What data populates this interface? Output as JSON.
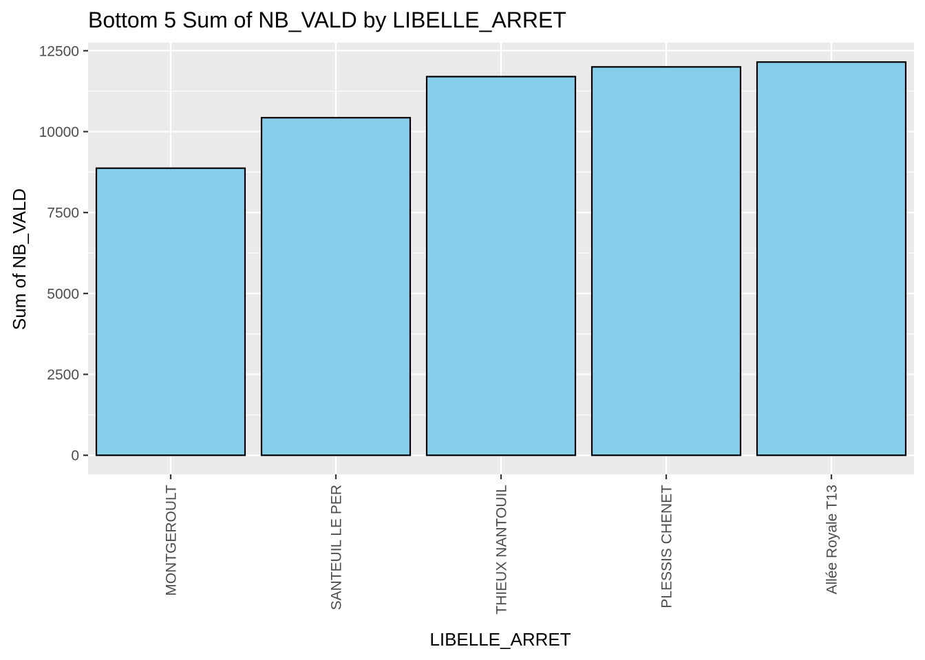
{
  "chart_data": {
    "type": "bar",
    "title": "Bottom 5 Sum of NB_VALD by LIBELLE_ARRET",
    "xlabel": "LIBELLE_ARRET",
    "ylabel": "Sum of NB_VALD",
    "categories": [
      "MONTGEROULT",
      "SANTEUIL LE PER",
      "THIEUX NANTOUIL",
      "PLESSIS CHENET",
      "Allée Royale T13"
    ],
    "values": [
      8870,
      10430,
      11700,
      12000,
      12150
    ],
    "ylim": [
      -590,
      12750
    ],
    "y_ticks": [
      0,
      2500,
      5000,
      7500,
      10000,
      12500
    ],
    "y_tick_labels": [
      "0",
      "2500",
      "5000",
      "7500",
      "10000",
      "12500"
    ],
    "bar_fill": "#87CEEB",
    "bar_stroke": "#000000",
    "panel_background": "#EBEBEB",
    "grid": true,
    "legend": "none"
  }
}
